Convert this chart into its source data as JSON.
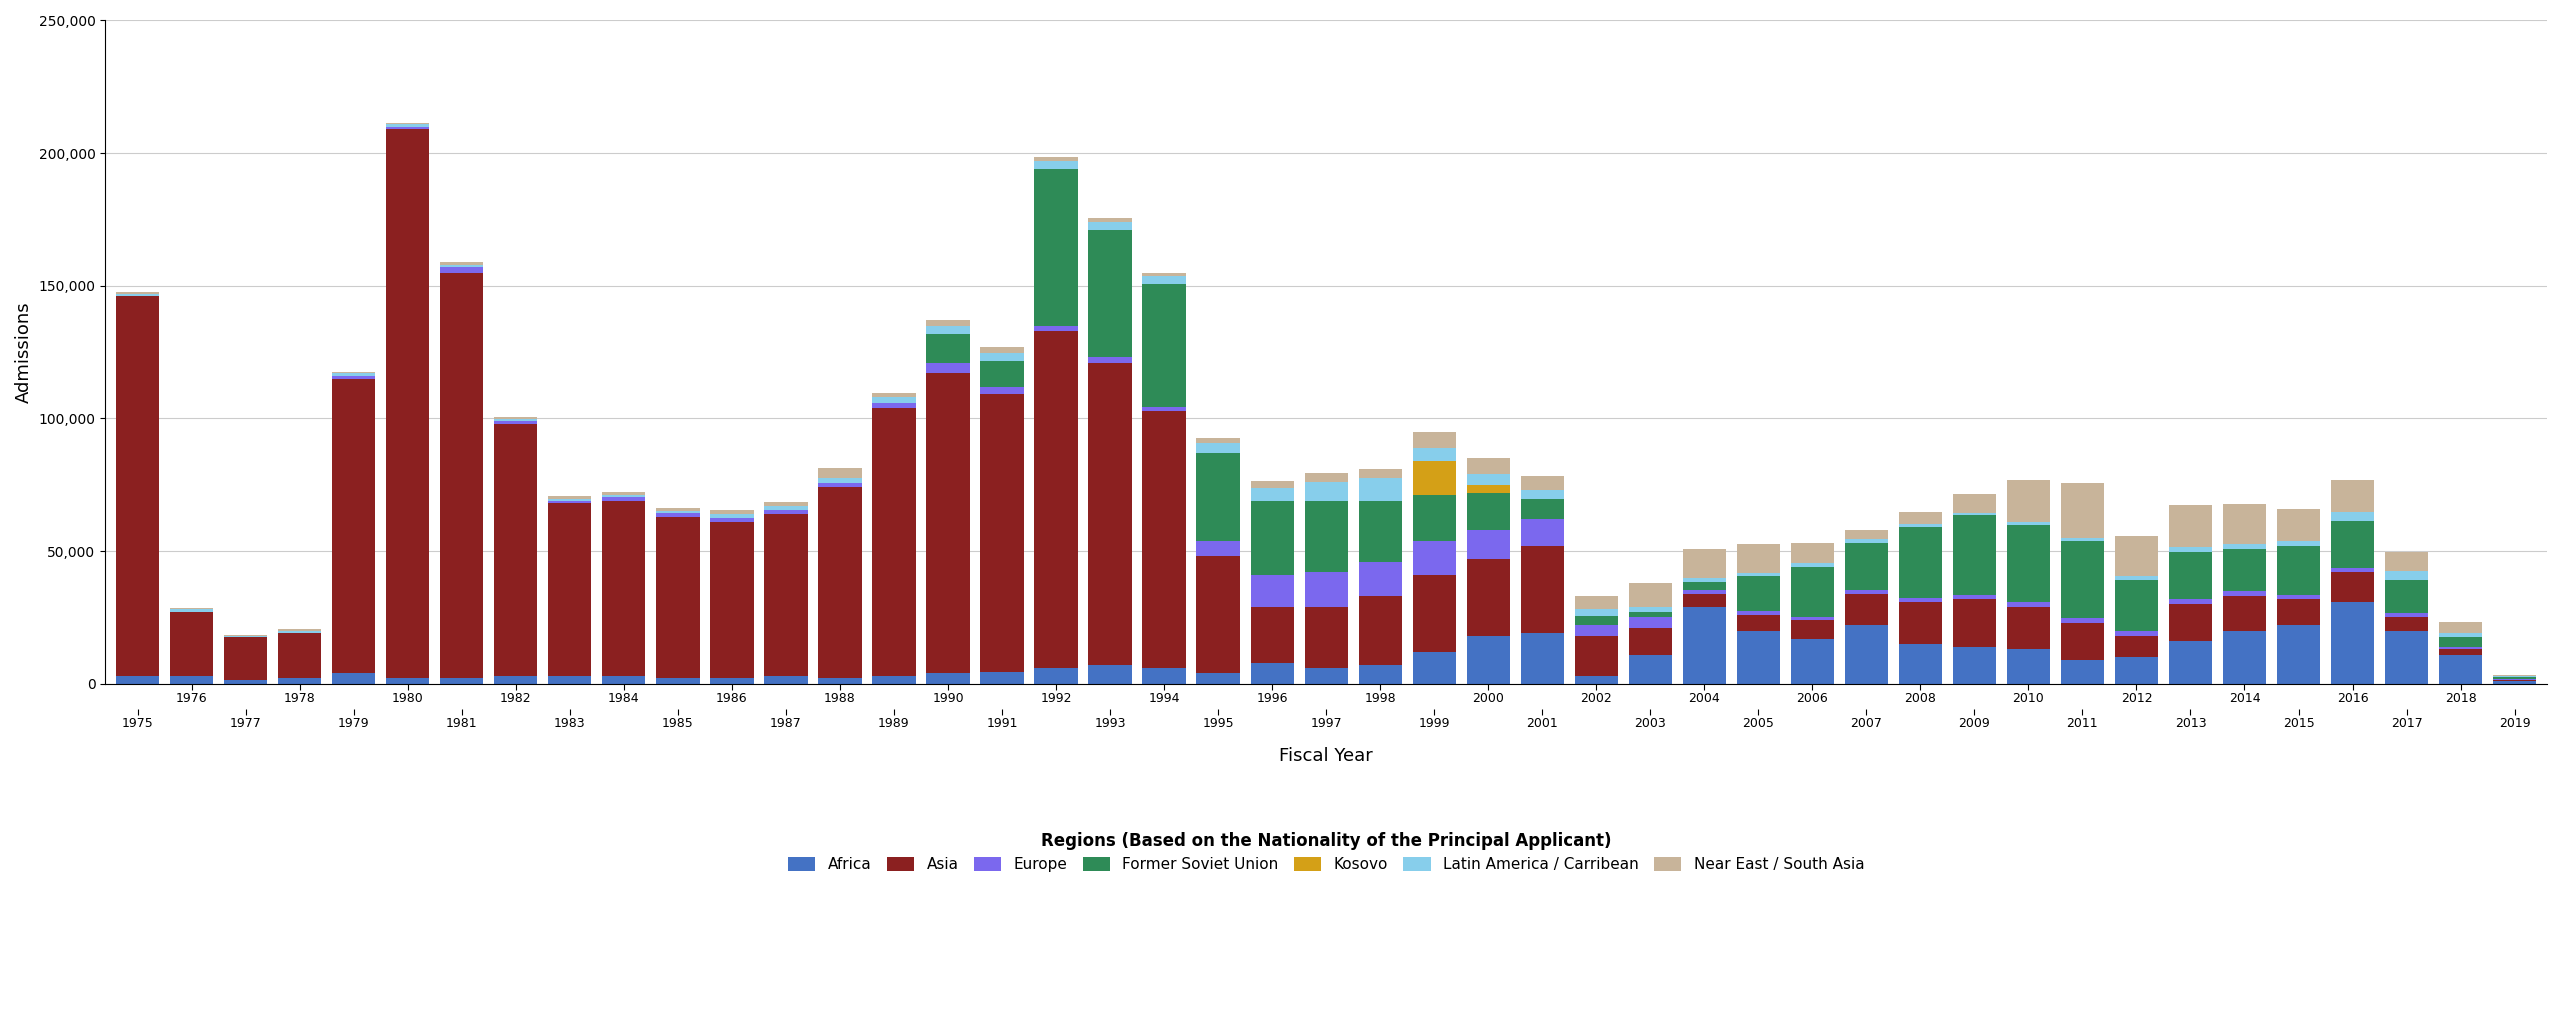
{
  "years": [
    1975,
    1976,
    1977,
    1978,
    1979,
    1980,
    1981,
    1982,
    1983,
    1984,
    1985,
    1986,
    1987,
    1988,
    1989,
    1990,
    1991,
    1992,
    1993,
    1994,
    1995,
    1996,
    1997,
    1998,
    1999,
    2000,
    2001,
    2002,
    2003,
    2004,
    2005,
    2006,
    2007,
    2008,
    2009,
    2010,
    2011,
    2012,
    2013,
    2014,
    2015,
    2016,
    2017,
    2018,
    2019
  ],
  "regions": [
    "Africa",
    "Asia",
    "Europe",
    "Former Soviet Union",
    "Kosovo",
    "Latin America / Carribean",
    "Near East / South Asia"
  ],
  "colors": [
    "#4472c4",
    "#8b2020",
    "#7b68ee",
    "#2e8b57",
    "#d4a017",
    "#87ceeb",
    "#c8b49a"
  ],
  "data": {
    "Africa": [
      3000,
      3000,
      1500,
      2000,
      4000,
      2000,
      2000,
      3000,
      3000,
      3000,
      2000,
      2000,
      3000,
      2000,
      3000,
      4000,
      4300,
      6000,
      7000,
      6000,
      4000,
      8000,
      6000,
      7000,
      12000,
      18000,
      19000,
      3000,
      11000,
      29000,
      20000,
      17000,
      22000,
      15000,
      14000,
      13000,
      9000,
      10000,
      16000,
      20000,
      22000,
      31000,
      20000,
      11000,
      1000
    ],
    "Asia": [
      143000,
      24000,
      16000,
      17000,
      111000,
      207000,
      153000,
      95000,
      65000,
      66000,
      61000,
      59000,
      61000,
      72000,
      101000,
      113000,
      105000,
      127000,
      114000,
      97000,
      44000,
      21000,
      23000,
      26000,
      29000,
      29000,
      33000,
      15000,
      10000,
      5000,
      6000,
      7000,
      12000,
      16000,
      18000,
      16000,
      14000,
      8000,
      14000,
      13000,
      10000,
      11000,
      5000,
      2000,
      500
    ],
    "Europe": [
      0,
      0,
      0,
      0,
      1000,
      1000,
      2000,
      1000,
      1000,
      1500,
      1500,
      1500,
      1500,
      1500,
      2000,
      4000,
      2500,
      2000,
      2000,
      1500,
      6000,
      12000,
      13000,
      13000,
      13000,
      11000,
      10000,
      4000,
      4000,
      1500,
      1500,
      1200,
      1200,
      1200,
      1500,
      1800,
      1800,
      2000,
      1800,
      1800,
      1600,
      1800,
      1500,
      800,
      400
    ],
    "Former Soviet Union": [
      0,
      0,
      0,
      0,
      0,
      0,
      0,
      0,
      0,
      0,
      0,
      0,
      0,
      0,
      0,
      11000,
      10000,
      59000,
      48000,
      46000,
      33000,
      28000,
      27000,
      23000,
      17000,
      14000,
      7500,
      3500,
      2000,
      3000,
      13000,
      19000,
      18000,
      27000,
      30000,
      29000,
      29000,
      19000,
      18000,
      16000,
      18500,
      17500,
      12500,
      4000,
      800
    ],
    "Kosovo": [
      0,
      0,
      0,
      0,
      0,
      0,
      0,
      0,
      0,
      0,
      0,
      0,
      0,
      0,
      0,
      0,
      0,
      0,
      0,
      0,
      0,
      0,
      0,
      0,
      13000,
      3000,
      0,
      0,
      0,
      0,
      0,
      0,
      0,
      0,
      0,
      0,
      0,
      0,
      0,
      0,
      0,
      0,
      0,
      0,
      0
    ],
    "Latin America / Carribean": [
      1000,
      1000,
      500,
      1000,
      1000,
      1000,
      1000,
      800,
      700,
      700,
      800,
      1500,
      1500,
      2000,
      2000,
      3000,
      3000,
      3000,
      3000,
      3200,
      3800,
      4800,
      7000,
      8500,
      5000,
      4200,
      3500,
      2500,
      2000,
      1200,
      1200,
      1200,
      1200,
      1000,
      900,
      1000,
      1000,
      1800,
      1700,
      1800,
      1800,
      3500,
      3500,
      1300,
      400
    ],
    "Near East / South Asia": [
      500,
      500,
      500,
      500,
      500,
      500,
      1000,
      800,
      1000,
      1000,
      1000,
      1500,
      1500,
      4000,
      1500,
      2000,
      2000,
      1500,
      1500,
      1200,
      1800,
      2500,
      3500,
      3500,
      6000,
      6000,
      5500,
      5000,
      9000,
      11000,
      11000,
      7500,
      3500,
      4500,
      7000,
      16000,
      21000,
      15000,
      16000,
      15000,
      12000,
      12000,
      7000,
      4000,
      300
    ]
  },
  "xlabel": "Fiscal Year",
  "ylabel": "Admissions",
  "ylim": [
    0,
    250000
  ],
  "yticks": [
    0,
    50000,
    100000,
    150000,
    200000,
    250000
  ],
  "legend_title": "Regions (Based on the Nationality of the Principal Applicant)",
  "background_color": "#ffffff",
  "figsize": [
    25.62,
    10.22
  ],
  "dpi": 100,
  "bar_width": 0.8
}
